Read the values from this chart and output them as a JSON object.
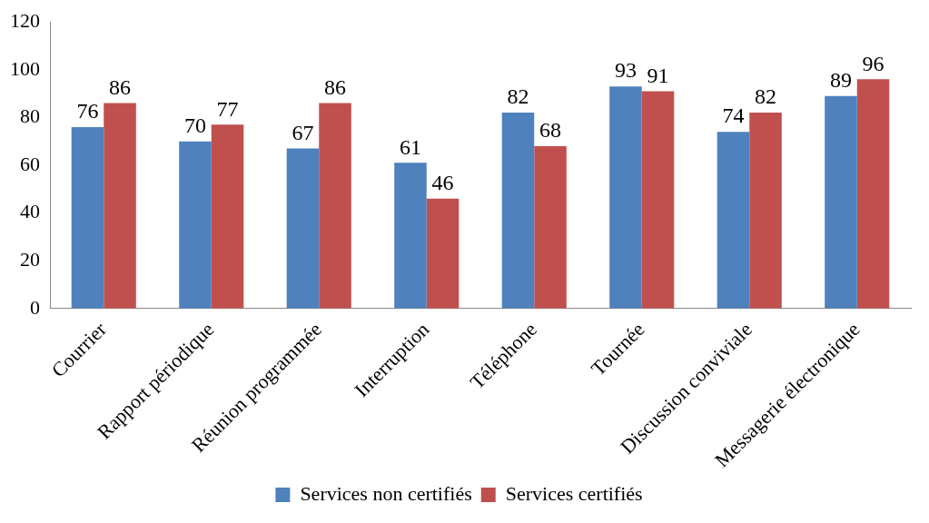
{
  "chart_data": {
    "type": "bar",
    "categories": [
      "Courrier",
      "Rapport périodique",
      "Réunion programmée",
      "Interruption",
      "Téléphone",
      "Tournée",
      "Discussion conviviale",
      "Messagerie électronique"
    ],
    "series": [
      {
        "name": "Services non certifiés",
        "color": "#4f81bd",
        "values": [
          76,
          70,
          67,
          61,
          82,
          93,
          74,
          89
        ]
      },
      {
        "name": "Services certifiés",
        "color": "#c0504d",
        "values": [
          86,
          77,
          86,
          46,
          68,
          91,
          82,
          96
        ]
      }
    ],
    "ylim": [
      0,
      120
    ],
    "yticks": [
      0,
      20,
      40,
      60,
      80,
      100,
      120
    ],
    "grid": false,
    "legend": "bottom",
    "data_labels": true
  }
}
